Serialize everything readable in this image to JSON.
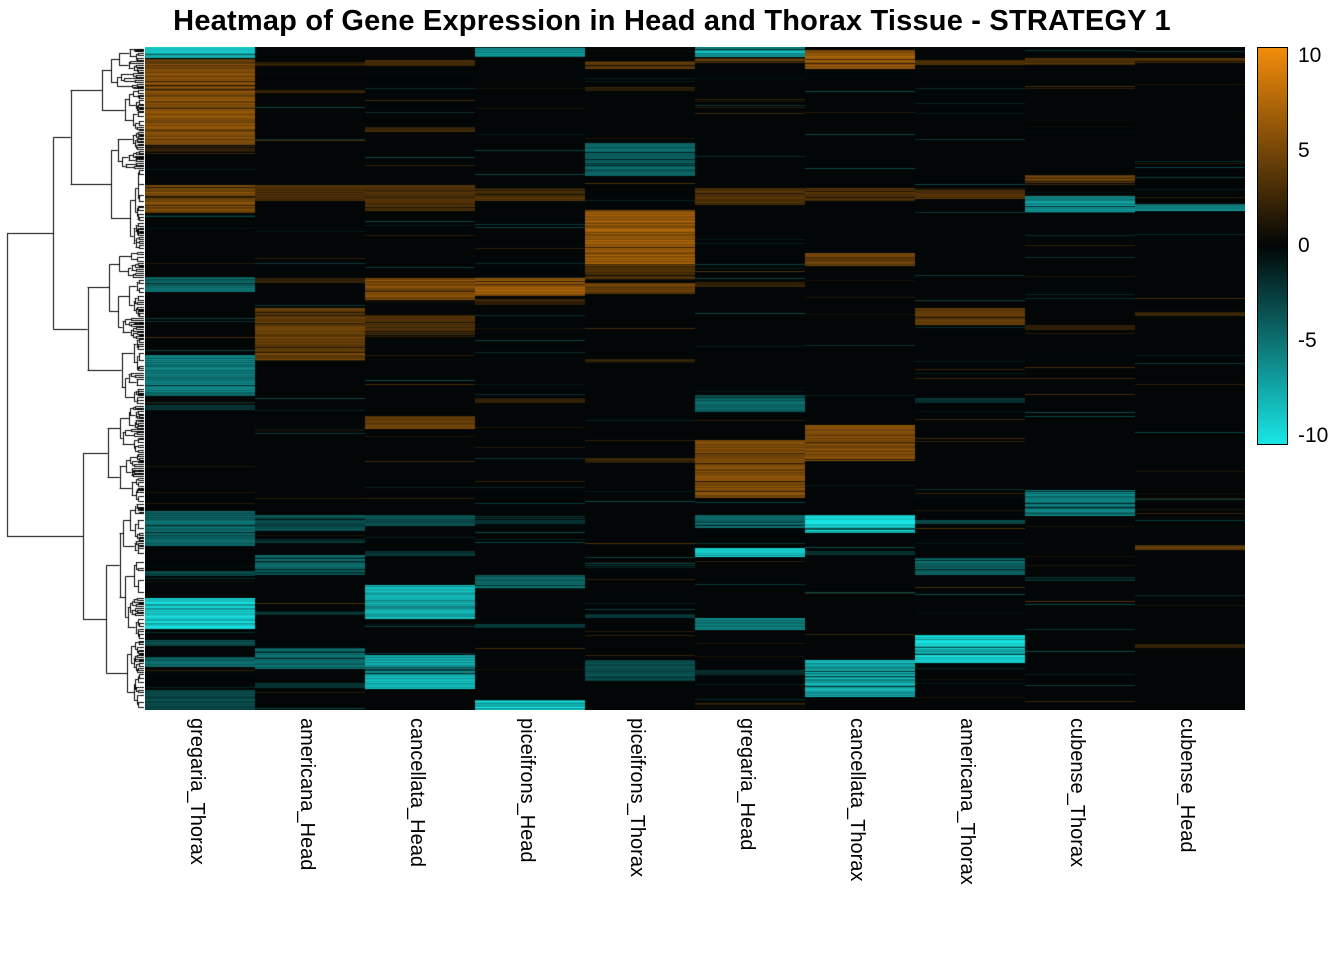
{
  "title": "Heatmap of Gene Expression in Head and Thorax Tissue - STRATEGY 1",
  "chart_data": {
    "type": "heatmap",
    "title": "Heatmap of Gene Expression in Head and Thorax Tissue - STRATEGY 1",
    "columns": [
      "gregaria_Thorax",
      "americana_Head",
      "cancellata_Head",
      "piceifrons_Head",
      "piceifrons_Thorax",
      "gregaria_Head",
      "cancellata_Thorax",
      "americana_Thorax",
      "cubense_Thorax",
      "cubense_Head"
    ],
    "value_range": [
      -10,
      10
    ],
    "colorbar": {
      "ticks": [
        10,
        5,
        0,
        -5,
        -10
      ],
      "top_color": "#F28C0A",
      "mid_color": "#020606",
      "bottom_color": "#19E6E6",
      "position": "right"
    },
    "colors": {
      "positive_max": "#F28C0A",
      "zero": "#020606",
      "negative_max": "#19E6E6",
      "page_background": "#FFFFFF"
    },
    "legend": "none",
    "grid": false,
    "row_dendrogram": true,
    "dendrogram": {
      "seed": 42,
      "orientation": "left"
    },
    "texture": {
      "seed": 1337,
      "sparse_line_density": 0.05,
      "sparse_line_max": 3.2
    },
    "blocks": [
      {
        "col": 0,
        "from": 0.0,
        "to": 0.016,
        "value": -9
      },
      {
        "col": 0,
        "from": 0.018,
        "to": 0.026,
        "value": 4
      },
      {
        "col": 0,
        "from": 0.026,
        "to": 0.148,
        "value": 5
      },
      {
        "col": 0,
        "from": 0.15,
        "to": 0.158,
        "value": 2
      },
      {
        "col": 0,
        "from": 0.208,
        "to": 0.25,
        "value": 5
      },
      {
        "col": 0,
        "from": 0.347,
        "to": 0.37,
        "value": -4
      },
      {
        "col": 0,
        "from": 0.465,
        "to": 0.527,
        "value": -5
      },
      {
        "col": 0,
        "from": 0.54,
        "to": 0.547,
        "value": -2
      },
      {
        "col": 0,
        "from": 0.7,
        "to": 0.752,
        "value": -4
      },
      {
        "col": 0,
        "from": 0.79,
        "to": 0.798,
        "value": -3
      },
      {
        "col": 0,
        "from": 0.831,
        "to": 0.878,
        "value": -8
      },
      {
        "col": 0,
        "from": 0.895,
        "to": 0.904,
        "value": -3
      },
      {
        "col": 0,
        "from": 0.92,
        "to": 0.935,
        "value": -4
      },
      {
        "col": 0,
        "from": 0.97,
        "to": 1.0,
        "value": -3
      },
      {
        "col": 1,
        "from": 0.022,
        "to": 0.028,
        "value": 2
      },
      {
        "col": 1,
        "from": 0.065,
        "to": 0.07,
        "value": 2
      },
      {
        "col": 1,
        "from": 0.208,
        "to": 0.232,
        "value": 3
      },
      {
        "col": 1,
        "from": 0.348,
        "to": 0.356,
        "value": 2
      },
      {
        "col": 1,
        "from": 0.394,
        "to": 0.473,
        "value": 4
      },
      {
        "col": 1,
        "from": 0.706,
        "to": 0.73,
        "value": -3
      },
      {
        "col": 1,
        "from": 0.742,
        "to": 0.748,
        "value": -2
      },
      {
        "col": 1,
        "from": 0.766,
        "to": 0.797,
        "value": -4
      },
      {
        "col": 1,
        "from": 0.85,
        "to": 0.857,
        "value": -2
      },
      {
        "col": 1,
        "from": 0.906,
        "to": 0.938,
        "value": -4
      },
      {
        "col": 1,
        "from": 0.96,
        "to": 0.967,
        "value": -2
      },
      {
        "col": 2,
        "from": 0.02,
        "to": 0.028,
        "value": 3
      },
      {
        "col": 2,
        "from": 0.12,
        "to": 0.126,
        "value": 2
      },
      {
        "col": 2,
        "from": 0.208,
        "to": 0.247,
        "value": 3
      },
      {
        "col": 2,
        "from": 0.348,
        "to": 0.382,
        "value": 5
      },
      {
        "col": 2,
        "from": 0.404,
        "to": 0.435,
        "value": 3
      },
      {
        "col": 2,
        "from": 0.556,
        "to": 0.576,
        "value": 4
      },
      {
        "col": 2,
        "from": 0.706,
        "to": 0.722,
        "value": -3
      },
      {
        "col": 2,
        "from": 0.76,
        "to": 0.767,
        "value": -2
      },
      {
        "col": 2,
        "from": 0.811,
        "to": 0.862,
        "value": -7
      },
      {
        "col": 2,
        "from": 0.917,
        "to": 0.968,
        "value": -7
      },
      {
        "col": 3,
        "from": 0.0,
        "to": 0.015,
        "value": -6
      },
      {
        "col": 3,
        "from": 0.213,
        "to": 0.232,
        "value": 3
      },
      {
        "col": 3,
        "from": 0.348,
        "to": 0.375,
        "value": 6
      },
      {
        "col": 3,
        "from": 0.38,
        "to": 0.389,
        "value": 2
      },
      {
        "col": 3,
        "from": 0.53,
        "to": 0.537,
        "value": 2
      },
      {
        "col": 3,
        "from": 0.713,
        "to": 0.72,
        "value": -2
      },
      {
        "col": 3,
        "from": 0.796,
        "to": 0.817,
        "value": -4
      },
      {
        "col": 3,
        "from": 0.87,
        "to": 0.876,
        "value": -2
      },
      {
        "col": 3,
        "from": 0.985,
        "to": 1.0,
        "value": -8
      },
      {
        "col": 4,
        "from": 0.023,
        "to": 0.033,
        "value": 4
      },
      {
        "col": 4,
        "from": 0.06,
        "to": 0.066,
        "value": 2
      },
      {
        "col": 4,
        "from": 0.145,
        "to": 0.194,
        "value": -4
      },
      {
        "col": 4,
        "from": 0.246,
        "to": 0.33,
        "value": 6
      },
      {
        "col": 4,
        "from": 0.33,
        "to": 0.352,
        "value": 3
      },
      {
        "col": 4,
        "from": 0.356,
        "to": 0.372,
        "value": 4
      },
      {
        "col": 4,
        "from": 0.47,
        "to": 0.477,
        "value": 2
      },
      {
        "col": 4,
        "from": 0.62,
        "to": 0.627,
        "value": 2
      },
      {
        "col": 4,
        "from": 0.855,
        "to": 0.861,
        "value": -2
      },
      {
        "col": 4,
        "from": 0.925,
        "to": 0.956,
        "value": -3
      },
      {
        "col": 5,
        "from": 0.0,
        "to": 0.015,
        "value": -7
      },
      {
        "col": 5,
        "from": 0.017,
        "to": 0.024,
        "value": 4
      },
      {
        "col": 5,
        "from": 0.213,
        "to": 0.238,
        "value": 3
      },
      {
        "col": 5,
        "from": 0.355,
        "to": 0.362,
        "value": 2
      },
      {
        "col": 5,
        "from": 0.525,
        "to": 0.551,
        "value": -4
      },
      {
        "col": 5,
        "from": 0.593,
        "to": 0.68,
        "value": 5
      },
      {
        "col": 5,
        "from": 0.706,
        "to": 0.726,
        "value": -4
      },
      {
        "col": 5,
        "from": 0.756,
        "to": 0.769,
        "value": -8
      },
      {
        "col": 5,
        "from": 0.861,
        "to": 0.88,
        "value": -5
      },
      {
        "col": 5,
        "from": 0.94,
        "to": 0.947,
        "value": -2
      },
      {
        "col": 6,
        "from": 0.005,
        "to": 0.033,
        "value": 6
      },
      {
        "col": 6,
        "from": 0.213,
        "to": 0.232,
        "value": 3
      },
      {
        "col": 6,
        "from": 0.311,
        "to": 0.33,
        "value": 4
      },
      {
        "col": 6,
        "from": 0.57,
        "to": 0.624,
        "value": 5
      },
      {
        "col": 6,
        "from": 0.706,
        "to": 0.733,
        "value": -9
      },
      {
        "col": 6,
        "from": 0.76,
        "to": 0.766,
        "value": -2
      },
      {
        "col": 6,
        "from": 0.925,
        "to": 0.981,
        "value": -7
      },
      {
        "col": 7,
        "from": 0.02,
        "to": 0.027,
        "value": 3
      },
      {
        "col": 7,
        "from": 0.213,
        "to": 0.229,
        "value": 3
      },
      {
        "col": 7,
        "from": 0.394,
        "to": 0.42,
        "value": 4
      },
      {
        "col": 7,
        "from": 0.53,
        "to": 0.537,
        "value": -2
      },
      {
        "col": 7,
        "from": 0.713,
        "to": 0.72,
        "value": -3
      },
      {
        "col": 7,
        "from": 0.771,
        "to": 0.797,
        "value": -4
      },
      {
        "col": 7,
        "from": 0.887,
        "to": 0.929,
        "value": -8
      },
      {
        "col": 8,
        "from": 0.017,
        "to": 0.025,
        "value": 3
      },
      {
        "col": 8,
        "from": 0.193,
        "to": 0.205,
        "value": 4
      },
      {
        "col": 8,
        "from": 0.225,
        "to": 0.25,
        "value": -6
      },
      {
        "col": 8,
        "from": 0.42,
        "to": 0.427,
        "value": 2
      },
      {
        "col": 8,
        "from": 0.668,
        "to": 0.707,
        "value": -5
      },
      {
        "col": 8,
        "from": 0.8,
        "to": 0.806,
        "value": -2
      },
      {
        "col": 9,
        "from": 0.017,
        "to": 0.024,
        "value": 3
      },
      {
        "col": 9,
        "from": 0.237,
        "to": 0.248,
        "value": -6
      },
      {
        "col": 9,
        "from": 0.4,
        "to": 0.406,
        "value": 2
      },
      {
        "col": 9,
        "from": 0.751,
        "to": 0.759,
        "value": 4
      },
      {
        "col": 9,
        "from": 0.9,
        "to": 0.906,
        "value": 2
      }
    ]
  }
}
